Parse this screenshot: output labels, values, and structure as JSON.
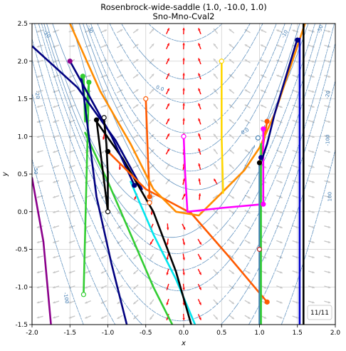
{
  "chart_data": {
    "type": "line",
    "title": "Rosenbrock-wide-saddle (1.0, -10.0, 1.0)",
    "subtitle": "Sno-Mno-Cval2",
    "xlabel": "x",
    "ylabel": "y",
    "xlim": [
      -2.0,
      2.0
    ],
    "ylim": [
      -1.5,
      2.5
    ],
    "xticks": [
      "-2.0",
      "-1.5",
      "-1.0",
      "-0.5",
      "0.0",
      "0.5",
      "1.0",
      "1.5",
      "2.0"
    ],
    "yticks": [
      "-1.5",
      "-1.0",
      "-0.5",
      "0.0",
      "0.5",
      "1.0",
      "1.5",
      "2.0",
      "2.5"
    ],
    "grid": true,
    "counter": "11/11",
    "contour_labels": [
      "-10",
      "-10",
      "-20",
      "-20",
      "-30",
      "-50",
      "-50",
      "-100",
      "-100",
      "0.0",
      "0.0",
      "100"
    ],
    "series": [
      {
        "color": "#8b008b",
        "x": [
          -2.0,
          -1.85,
          -1.75
        ],
        "y": [
          0.45,
          -0.4,
          -1.5
        ]
      },
      {
        "color": "#00e5ee",
        "x": [
          -0.7,
          -0.4,
          -0.1,
          0.15
        ],
        "y": [
          0.4,
          -0.3,
          -0.9,
          -1.5
        ]
      },
      {
        "color": "#000000",
        "x": [
          -1.15,
          -0.8,
          -0.4,
          -0.1,
          0.1
        ],
        "y": [
          1.2,
          0.7,
          0.0,
          -0.8,
          -1.5
        ]
      },
      {
        "color": "#32cd32",
        "x": [
          -1.3,
          -1.0,
          -0.7,
          -0.4,
          -0.15
        ],
        "y": [
          1.05,
          0.4,
          -0.3,
          -1.0,
          -1.5
        ]
      },
      {
        "color": "#32cd32",
        "x": [
          -1.32,
          -1.3,
          -1.25,
          -1.32
        ],
        "y": [
          1.8,
          1.2,
          1.72,
          -1.1
        ]
      },
      {
        "color": "#000080",
        "x": [
          -1.35,
          -1.15,
          -0.95,
          -0.75
        ],
        "y": [
          1.8,
          0.2,
          -0.7,
          -1.5
        ]
      },
      {
        "color": "#000080",
        "x": [
          -2.0,
          -1.4,
          -0.9,
          -0.6,
          -0.55
        ],
        "y": [
          2.2,
          1.65,
          0.95,
          0.4,
          0.3
        ]
      },
      {
        "color": "#000080",
        "x": [
          -1.5,
          -0.95,
          -0.65
        ],
        "y": [
          2.0,
          1.0,
          0.35
        ]
      },
      {
        "color": "#000000",
        "x": [
          -1.05,
          -1.02,
          -1.0,
          -1.0,
          -1.15
        ],
        "y": [
          1.22,
          0.9,
          0.5,
          0.0,
          1.22
        ]
      },
      {
        "color": "#ff5a00",
        "x": [
          -0.5,
          -0.47,
          -0.45
        ],
        "y": [
          1.5,
          0.7,
          0.2
        ]
      },
      {
        "color": "#ff5a00",
        "x": [
          -1.0,
          -0.5,
          0.1,
          0.6,
          1.1
        ],
        "y": [
          0.8,
          0.3,
          -0.02,
          -0.6,
          -1.2
        ]
      },
      {
        "color": "#ff5a00",
        "x": [
          1.1,
          1.05,
          1.0
        ],
        "y": [
          1.2,
          0.9,
          0.65
        ]
      },
      {
        "color": "#ff8c00",
        "x": [
          -1.5,
          -1.1,
          -0.7,
          -0.4,
          -0.1,
          0.2,
          0.5,
          0.8,
          1.0,
          1.2,
          1.4,
          1.6
        ],
        "y": [
          2.5,
          1.6,
          0.9,
          0.3,
          0.0,
          -0.05,
          0.25,
          0.55,
          0.85,
          1.3,
          1.9,
          2.5
        ]
      },
      {
        "color": "#ffd700",
        "x": [
          0.5,
          0.5,
          0.52
        ],
        "y": [
          2.0,
          1.0,
          0.25
        ]
      },
      {
        "color": "#ff00ff",
        "x": [
          0.0,
          0.02,
          0.05,
          0.5,
          1.05,
          1.05,
          1.05
        ],
        "y": [
          1.0,
          0.5,
          0.0,
          0.05,
          0.1,
          0.6,
          1.1
        ]
      },
      {
        "color": "#000080",
        "x": [
          1.0,
          1.1,
          1.2,
          1.35,
          1.5
        ],
        "y": [
          0.6,
          0.9,
          1.3,
          1.8,
          2.3
        ]
      },
      {
        "color": "#000000",
        "x": [
          1.58,
          1.58,
          1.58
        ],
        "y": [
          2.5,
          0.5,
          -1.5
        ]
      },
      {
        "color": "#4682b4",
        "x": [
          1.0,
          1.0,
          1.0
        ],
        "y": [
          0.65,
          -0.5,
          -1.5
        ]
      },
      {
        "color": "#32cd32",
        "x": [
          1.02,
          1.02,
          1.02
        ],
        "y": [
          0.9,
          -0.5,
          -1.5
        ]
      },
      {
        "color": "#0000cd",
        "x": [
          1.53,
          1.53,
          1.53
        ],
        "y": [
          2.3,
          0.5,
          -1.5
        ]
      }
    ],
    "start_markers": [
      {
        "x": -1.32,
        "y": -1.1,
        "color": "#32cd32"
      },
      {
        "x": -1.05,
        "y": 1.25,
        "color": "#000000"
      },
      {
        "x": -1.0,
        "y": 0.0,
        "color": "#000000"
      },
      {
        "x": -0.5,
        "y": 1.5,
        "color": "#ff5a00"
      },
      {
        "x": -0.45,
        "y": 0.12,
        "color": "#ff5a00"
      },
      {
        "x": 0.5,
        "y": 2.0,
        "color": "#ffd700"
      },
      {
        "x": 0.0,
        "y": 1.0,
        "color": "#ff00ff"
      },
      {
        "x": 1.0,
        "y": -0.5,
        "color": "#b22222"
      },
      {
        "x": 0.98,
        "y": 0.98,
        "color": "#4682b4"
      }
    ],
    "end_markers": [
      {
        "x": -1.5,
        "y": 2.0,
        "color": "#8b008b"
      },
      {
        "x": -1.33,
        "y": 1.8,
        "color": "#32cd32"
      },
      {
        "x": -1.15,
        "y": 1.22,
        "color": "#000000"
      },
      {
        "x": -1.25,
        "y": 1.72,
        "color": "#32cd32"
      },
      {
        "x": -0.65,
        "y": 0.35,
        "color": "#000080"
      },
      {
        "x": -1.0,
        "y": 0.8,
        "color": "#000000"
      },
      {
        "x": 1.0,
        "y": 0.65,
        "color": "#000000"
      },
      {
        "x": 1.02,
        "y": 0.72,
        "color": "#000080"
      },
      {
        "x": 1.05,
        "y": 1.1,
        "color": "#ff00ff"
      },
      {
        "x": 1.05,
        "y": 0.1,
        "color": "#ff00ff"
      },
      {
        "x": 1.1,
        "y": 1.2,
        "color": "#ff5a00"
      },
      {
        "x": 1.5,
        "y": 2.28,
        "color": "#000080"
      },
      {
        "x": 1.1,
        "y": -1.2,
        "color": "#ff5a00"
      },
      {
        "x": -0.45,
        "y": 0.2,
        "color": "#ff5a00"
      }
    ],
    "contour_levels": [
      -100,
      -50,
      -30,
      -20,
      -10,
      -5,
      -2,
      0,
      2,
      5,
      10,
      20,
      50,
      100,
      200
    ]
  }
}
